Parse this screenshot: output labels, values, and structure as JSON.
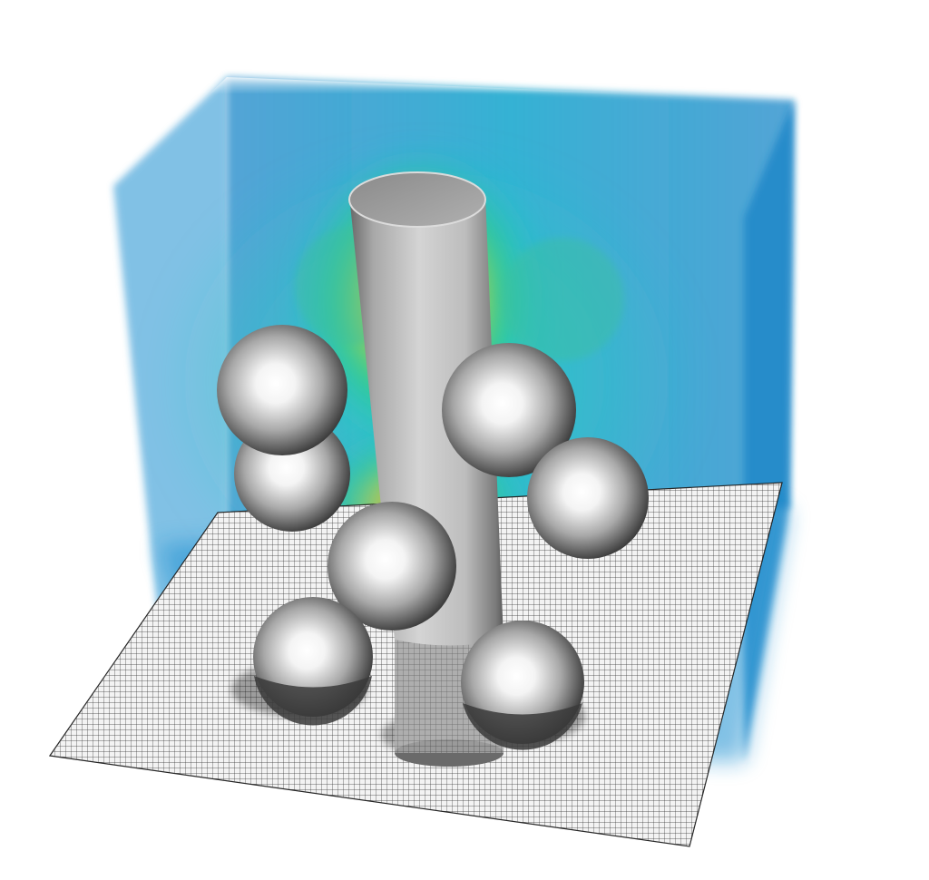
{
  "scene": {
    "background_color": "#ffffff",
    "volume_colors": {
      "outer": "#1a8fd0",
      "mid": "#22c2c8",
      "near": "#2fd07a",
      "hot": "#e8d020",
      "hottest": "#e05010"
    },
    "mesh_color": "#1a1a1a",
    "object_color": "#b8b8b8",
    "objects": {
      "cylinder_count": 1,
      "sphere_count": 7
    }
  }
}
